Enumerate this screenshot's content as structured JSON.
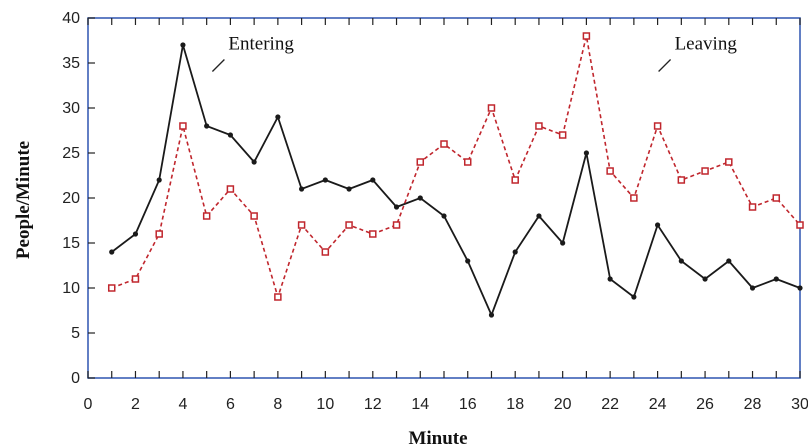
{
  "chart_data": {
    "type": "line",
    "xlabel": "Minute",
    "ylabel": "People/Minute",
    "xlim": [
      0,
      30
    ],
    "ylim": [
      0,
      40
    ],
    "x_ticks": [
      "0",
      "2",
      "4",
      "6",
      "8",
      "10",
      "12",
      "14",
      "16",
      "18",
      "20",
      "22",
      "24",
      "26",
      "28",
      "30"
    ],
    "y_ticks": [
      "0",
      "5",
      "10",
      "15",
      "20",
      "25",
      "30",
      "35",
      "40"
    ],
    "grid": false,
    "x": [
      1,
      2,
      3,
      4,
      5,
      6,
      7,
      8,
      9,
      10,
      11,
      12,
      13,
      14,
      15,
      16,
      17,
      18,
      19,
      20,
      21,
      22,
      23,
      24,
      25,
      26,
      27,
      28,
      29,
      30
    ],
    "series": [
      {
        "name": "Entering",
        "values": [
          14,
          16,
          22,
          37,
          28,
          27,
          24,
          29,
          21,
          22,
          21,
          22,
          19,
          20,
          18,
          13,
          7,
          14,
          18,
          15,
          25,
          11,
          9,
          17,
          13,
          11,
          13,
          10,
          11,
          10
        ],
        "color": "#1a1a1a",
        "style": "solid",
        "label_at": [
          6.0,
          36.5
        ]
      },
      {
        "name": "Leaving",
        "values": [
          10,
          11,
          16,
          28,
          18,
          21,
          18,
          9,
          17,
          14,
          17,
          16,
          17,
          24,
          26,
          24,
          30,
          22,
          28,
          27,
          38,
          23,
          20,
          28,
          22,
          23,
          24,
          19,
          20,
          17
        ],
        "color": "#c0262d",
        "style": "dashed",
        "label_at": [
          24.8,
          36.5
        ]
      }
    ],
    "frame_color": "#3b5fb5"
  }
}
